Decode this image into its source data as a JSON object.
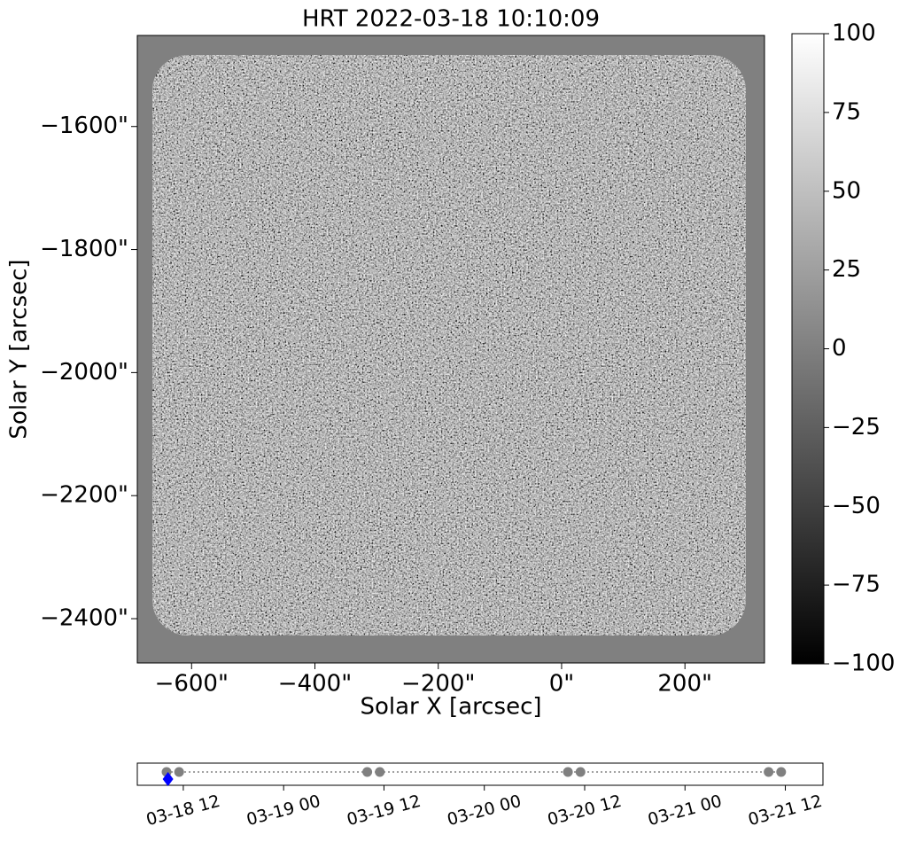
{
  "chart_data": [
    {
      "type": "image",
      "title": "HRT 2022-03-18 10:10:09",
      "xlabel": "Solar X [arcsec]",
      "ylabel": "Solar Y [arcsec]",
      "xlim": [
        -688,
        329
      ],
      "ylim": [
        -2472,
        -1452
      ],
      "xticks": [
        {
          "value": -600,
          "label": "−600\""
        },
        {
          "value": -400,
          "label": "−400\""
        },
        {
          "value": -200,
          "label": "−200\""
        },
        {
          "value": 0,
          "label": "0\""
        },
        {
          "value": 200,
          "label": "200\""
        }
      ],
      "yticks": [
        {
          "value": -1600,
          "label": "−1600\""
        },
        {
          "value": -1800,
          "label": "−1800\""
        },
        {
          "value": -2000,
          "label": "−2000\""
        },
        {
          "value": -2200,
          "label": "−2200\""
        },
        {
          "value": -2400,
          "label": "−2400\""
        }
      ],
      "cmap": "gray",
      "clim": [
        -100,
        100
      ],
      "cticks": [
        100,
        75,
        50,
        25,
        0,
        {
          "value": -25,
          "label": "−25"
        },
        {
          "value": -50,
          "label": "−50"
        },
        {
          "value": -75,
          "label": "−75"
        },
        {
          "value": -100,
          "label": "−100"
        }
      ]
    },
    {
      "type": "timeline",
      "xlim": [
        "03-18 06:30",
        "03-21 16:30"
      ],
      "xticks": [
        "03-18 12",
        "03-19 00",
        "03-19 12",
        "03-20 00",
        "03-20 12",
        "03-21 00",
        "03-21 12"
      ],
      "x": [
        "03-18 10:00",
        "03-18 11:30",
        "03-19 10:00",
        "03-19 11:30",
        "03-20 10:00",
        "03-20 11:30",
        "03-21 10:00",
        "03-21 11:30"
      ],
      "color": "#808080",
      "current": {
        "x": "03-18 10:10",
        "color": "#0000ff"
      }
    }
  ]
}
